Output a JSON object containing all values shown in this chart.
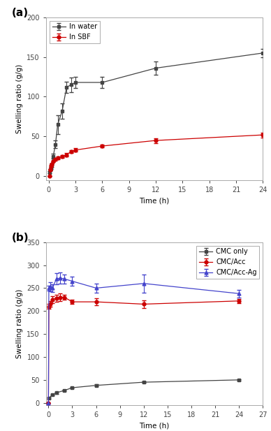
{
  "panel_a": {
    "title_label": "(a)",
    "xlabel": "Time (h)",
    "ylabel": "Swelling ratio (g/g)",
    "xlim": [
      -0.3,
      24
    ],
    "ylim": [
      -5,
      200
    ],
    "yticks": [
      0,
      50,
      100,
      150,
      200
    ],
    "xticks": [
      0,
      3,
      6,
      9,
      12,
      15,
      18,
      21,
      24
    ],
    "series": [
      {
        "label": "In water",
        "color": "#444444",
        "marker": "s",
        "x": [
          0.083,
          0.167,
          0.25,
          0.333,
          0.5,
          0.75,
          1.0,
          1.5,
          2.0,
          2.5,
          3.0,
          6.0,
          12.0,
          24.0
        ],
        "y": [
          5,
          8,
          10,
          14,
          25,
          40,
          65,
          82,
          112,
          115,
          118,
          118,
          136,
          155
        ],
        "yerr": [
          1,
          1,
          1,
          2,
          3,
          5,
          12,
          10,
          7,
          9,
          7,
          7,
          8,
          5
        ]
      },
      {
        "label": "In SBF",
        "color": "#cc0000",
        "marker": "o",
        "x": [
          0.083,
          0.167,
          0.25,
          0.333,
          0.5,
          0.75,
          1.0,
          1.5,
          2.0,
          2.5,
          3.0,
          6.0,
          12.0,
          24.0
        ],
        "y": [
          0,
          8,
          13,
          15,
          19,
          21,
          23,
          25,
          27,
          31,
          33,
          38,
          45,
          52
        ],
        "yerr": [
          0,
          1,
          1,
          1,
          1,
          1,
          2,
          2,
          2,
          2,
          2,
          2,
          3,
          3
        ]
      }
    ],
    "legend_loc": "upper left"
  },
  "panel_b": {
    "title_label": "(b)",
    "xlabel": "Time (h)",
    "ylabel": "Swelling ratio (g/g)",
    "xlim": [
      -0.3,
      27
    ],
    "ylim": [
      -5,
      350
    ],
    "yticks": [
      0,
      50,
      100,
      150,
      200,
      250,
      300,
      350
    ],
    "xticks": [
      0,
      3,
      6,
      9,
      12,
      15,
      18,
      21,
      24,
      27
    ],
    "series": [
      {
        "label": "CMC only",
        "color": "#444444",
        "marker": "s",
        "x": [
          0.05,
          0.5,
          1.0,
          2.0,
          3.0,
          6.0,
          12.0,
          24.0
        ],
        "y": [
          10,
          18,
          22,
          27,
          33,
          38,
          45,
          50
        ],
        "yerr": [
          1,
          1,
          2,
          2,
          2,
          2,
          2,
          2
        ]
      },
      {
        "label": "CMC/Acc",
        "color": "#cc0000",
        "marker": "o",
        "x": [
          0.0,
          0.05,
          0.25,
          0.5,
          1.0,
          1.5,
          2.0,
          3.0,
          6.0,
          12.0,
          24.0
        ],
        "y": [
          0,
          210,
          215,
          225,
          228,
          230,
          230,
          220,
          220,
          215,
          222
        ],
        "yerr": [
          0,
          5,
          6,
          8,
          8,
          8,
          6,
          5,
          8,
          8,
          5
        ]
      },
      {
        "label": "CMC/Acc-Ag",
        "color": "#4444cc",
        "marker": "^",
        "x": [
          0.0,
          0.05,
          0.25,
          0.5,
          1.0,
          1.5,
          2.0,
          3.0,
          6.0,
          12.0,
          24.0
        ],
        "y": [
          0,
          250,
          253,
          250,
          270,
          272,
          270,
          265,
          250,
          260,
          238
        ],
        "yerr": [
          0,
          5,
          10,
          8,
          12,
          12,
          10,
          10,
          10,
          20,
          8
        ]
      }
    ],
    "legend_loc": "upper right"
  }
}
